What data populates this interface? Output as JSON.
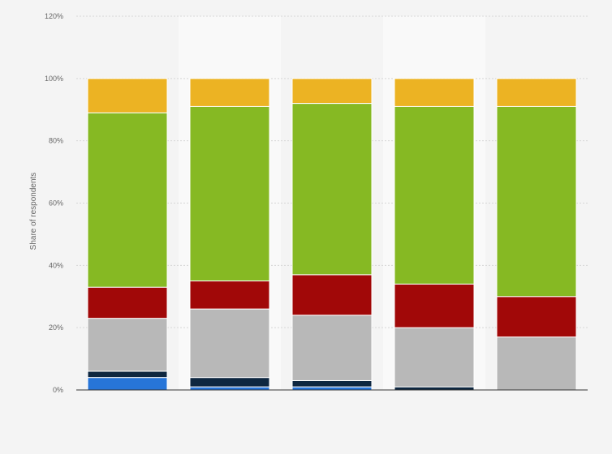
{
  "chart_data": {
    "type": "bar",
    "stacked": true,
    "title": "",
    "xlabel": "",
    "ylabel": "Share of respondents",
    "ylim": [
      0,
      120
    ],
    "yticks": [
      "0%",
      "20%",
      "40%",
      "60%",
      "80%",
      "100%",
      "120%"
    ],
    "grid": true,
    "categories": [
      "",
      "",
      "",
      "",
      ""
    ],
    "series": [
      {
        "color": "#2775d8",
        "values": [
          4,
          1,
          1,
          0,
          0
        ]
      },
      {
        "color": "#0e2740",
        "values": [
          2,
          3,
          2,
          1,
          0
        ]
      },
      {
        "color": "#b8b8b8",
        "values": [
          17,
          22,
          21,
          19,
          17
        ]
      },
      {
        "color": "#a10808",
        "values": [
          10,
          9,
          13,
          14,
          13
        ]
      },
      {
        "color": "#86b923",
        "values": [
          56,
          56,
          55,
          57,
          61
        ]
      },
      {
        "color": "#ecb323",
        "values": [
          11,
          9,
          8,
          9,
          9
        ]
      }
    ]
  }
}
